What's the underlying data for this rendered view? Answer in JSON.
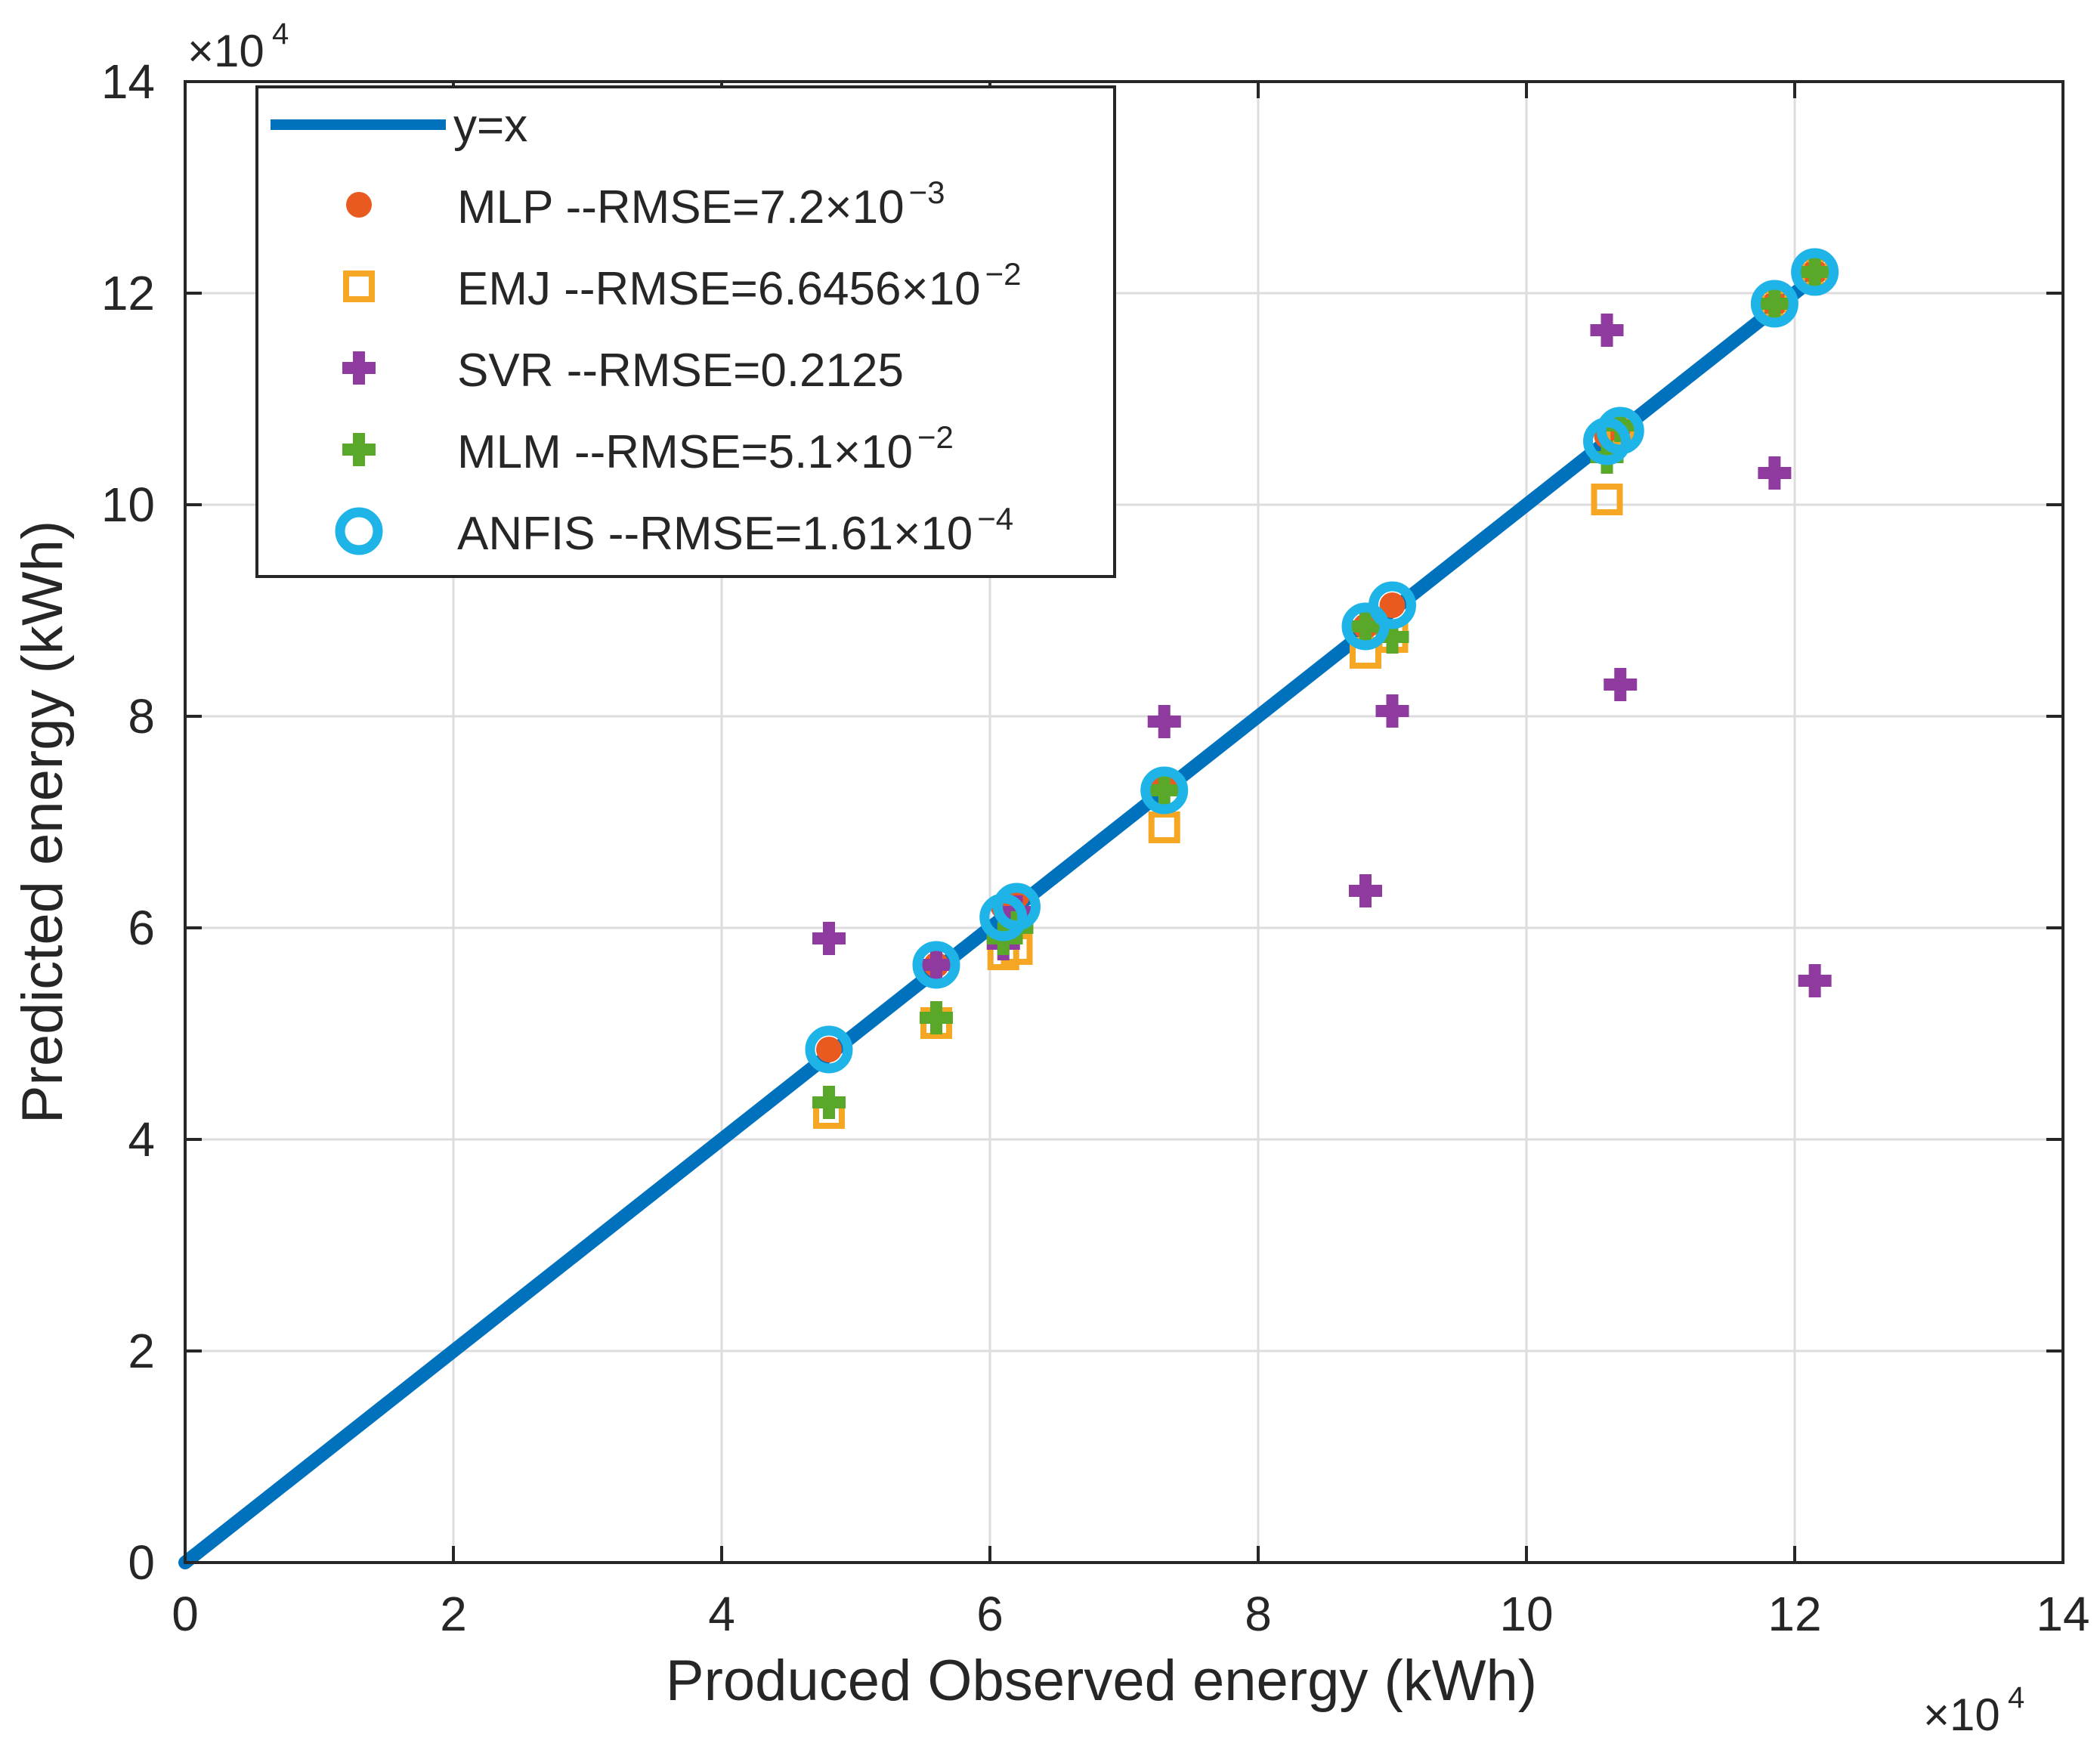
{
  "chart_data": {
    "type": "scatter",
    "title": "",
    "xlabel": "Produced Observed energy (kWh)",
    "ylabel": "Predicted energy (kWh)",
    "xlim": [
      0,
      14
    ],
    "ylim": [
      0,
      14
    ],
    "xticks": [
      "0",
      "2",
      "4",
      "6",
      "8",
      "10",
      "12",
      "14"
    ],
    "yticks": [
      "0",
      "2",
      "4",
      "6",
      "8",
      "10",
      "12",
      "14"
    ],
    "x_multiplier": {
      "base": "×10",
      "exponent": "4"
    },
    "y_multiplier": {
      "base": "×10",
      "exponent": "4"
    },
    "grid": true,
    "legend_position": "top-left",
    "line": {
      "name": "y=x",
      "x": [
        0,
        12.2
      ],
      "y": [
        0,
        12.2
      ],
      "color": "#0072BD"
    },
    "observed_x": [
      4.8,
      5.6,
      6.1,
      6.2,
      7.3,
      8.8,
      9.0,
      10.6,
      10.7,
      11.85,
      12.15
    ],
    "series": [
      {
        "name": "MLP",
        "legend_label": "MLP --RMSE=7.2×10",
        "legend_exp": "−3",
        "marker": "circle-filled",
        "color": "#E85A20",
        "y": [
          4.85,
          5.65,
          6.2,
          6.3,
          7.35,
          8.85,
          9.05,
          10.65,
          10.75,
          11.9,
          12.2
        ]
      },
      {
        "name": "EMJ",
        "legend_label": "EMJ --RMSE=6.6456×10",
        "legend_exp": "−2",
        "marker": "square-open",
        "color": "#F5A623",
        "y": [
          4.25,
          5.1,
          5.75,
          5.8,
          6.95,
          8.6,
          8.75,
          10.05,
          10.7,
          11.9,
          12.2
        ]
      },
      {
        "name": "SVR",
        "legend_label": "SVR --RMSE=0.2125",
        "legend_exp": "",
        "marker": "plus",
        "color": "#8E3A9E",
        "y": [
          5.9,
          5.65,
          5.85,
          6.15,
          7.95,
          6.35,
          8.05,
          11.65,
          8.3,
          10.3,
          5.5
        ]
      },
      {
        "name": "MLM",
        "legend_label": "MLM --RMSE=5.1×10",
        "legend_exp": "−2",
        "marker": "plus",
        "color": "#5AA829",
        "y": [
          4.35,
          5.15,
          5.9,
          6.0,
          7.3,
          8.85,
          8.75,
          10.45,
          10.75,
          11.9,
          12.2
        ]
      },
      {
        "name": "ANFIS",
        "legend_label": "ANFIS --RMSE=1.61×10",
        "legend_exp": "−4",
        "marker": "circle-open",
        "color": "#1EB4E8",
        "y": [
          4.85,
          5.65,
          6.1,
          6.2,
          7.3,
          8.85,
          9.05,
          10.6,
          10.7,
          11.9,
          12.2
        ]
      }
    ]
  }
}
